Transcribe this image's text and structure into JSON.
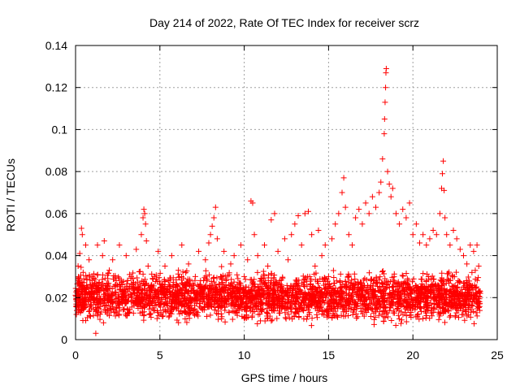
{
  "chart_data": {
    "type": "scatter",
    "title": "Day 214 of 2022, Rate Of TEC Index for receiver scrz",
    "xlabel": "GPS time / hours",
    "ylabel": "ROTI / TECUs",
    "xlim": [
      0,
      25
    ],
    "ylim": [
      0,
      0.14
    ],
    "xticks": [
      0,
      5,
      10,
      15,
      20,
      25
    ],
    "xtick_labels": [
      "0",
      "5",
      "10",
      "15",
      "20",
      "25"
    ],
    "yticks": [
      0,
      0.02,
      0.04,
      0.06,
      0.08,
      0.1,
      0.12,
      0.14
    ],
    "ytick_labels": [
      "0",
      "0.02",
      "0.04",
      "0.06",
      "0.08",
      "0.1",
      "0.12",
      "0.14"
    ],
    "grid": true,
    "marker": "+",
    "series": [
      {
        "name": "ROTI",
        "color": "#ff0000",
        "points": [
          [
            0.05,
            0.012
          ],
          [
            0.1,
            0.022
          ],
          [
            0.15,
            0.035
          ],
          [
            0.2,
            0.028
          ],
          [
            0.25,
            0.041
          ],
          [
            0.3,
            0.018
          ],
          [
            0.35,
            0.053
          ],
          [
            0.4,
            0.05
          ],
          [
            0.45,
            0.032
          ],
          [
            0.5,
            0.015
          ],
          [
            0.6,
            0.045
          ],
          [
            0.7,
            0.025
          ],
          [
            0.8,
            0.038
          ],
          [
            0.9,
            0.016
          ],
          [
            1.0,
            0.03
          ],
          [
            1.1,
            0.02
          ],
          [
            1.2,
            0.003
          ],
          [
            1.3,
            0.045
          ],
          [
            1.4,
            0.027
          ],
          [
            1.5,
            0.019
          ],
          [
            1.6,
            0.04
          ],
          [
            1.7,
            0.047
          ],
          [
            1.8,
            0.022
          ],
          [
            1.9,
            0.014
          ],
          [
            2.0,
            0.033
          ],
          [
            2.2,
            0.038
          ],
          [
            2.4,
            0.026
          ],
          [
            2.6,
            0.045
          ],
          [
            2.8,
            0.02
          ],
          [
            3.0,
            0.04
          ],
          [
            3.2,
            0.031
          ],
          [
            3.4,
            0.024
          ],
          [
            3.6,
            0.043
          ],
          [
            3.8,
            0.018
          ],
          [
            3.9,
            0.05
          ],
          [
            4.0,
            0.058
          ],
          [
            4.05,
            0.062
          ],
          [
            4.1,
            0.06
          ],
          [
            4.15,
            0.055
          ],
          [
            4.2,
            0.047
          ],
          [
            4.3,
            0.035
          ],
          [
            4.5,
            0.025
          ],
          [
            4.7,
            0.03
          ],
          [
            4.9,
            0.042
          ],
          [
            5.1,
            0.02
          ],
          [
            5.3,
            0.035
          ],
          [
            5.5,
            0.028
          ],
          [
            5.7,
            0.04
          ],
          [
            5.9,
            0.017
          ],
          [
            6.1,
            0.033
          ],
          [
            6.3,
            0.045
          ],
          [
            6.5,
            0.022
          ],
          [
            6.7,
            0.036
          ],
          [
            6.9,
            0.019
          ],
          [
            7.1,
            0.03
          ],
          [
            7.3,
            0.042
          ],
          [
            7.5,
            0.025
          ],
          [
            7.7,
            0.038
          ],
          [
            7.9,
            0.046
          ],
          [
            8.0,
            0.05
          ],
          [
            8.1,
            0.054
          ],
          [
            8.2,
            0.058
          ],
          [
            8.3,
            0.063
          ],
          [
            8.4,
            0.048
          ],
          [
            8.6,
            0.03
          ],
          [
            8.8,
            0.042
          ],
          [
            9.0,
            0.022
          ],
          [
            9.2,
            0.036
          ],
          [
            9.4,
            0.04
          ],
          [
            9.6,
            0.02
          ],
          [
            9.8,
            0.045
          ],
          [
            10.0,
            0.03
          ],
          [
            10.2,
            0.038
          ],
          [
            10.4,
            0.066
          ],
          [
            10.5,
            0.065
          ],
          [
            10.6,
            0.05
          ],
          [
            10.8,
            0.04
          ],
          [
            11.0,
            0.028
          ],
          [
            11.2,
            0.045
          ],
          [
            11.4,
            0.035
          ],
          [
            11.6,
            0.057
          ],
          [
            11.8,
            0.06
          ],
          [
            12.0,
            0.042
          ],
          [
            12.2,
            0.026
          ],
          [
            12.4,
            0.048
          ],
          [
            12.6,
            0.038
          ],
          [
            12.8,
            0.05
          ],
          [
            13.0,
            0.055
          ],
          [
            13.2,
            0.059
          ],
          [
            13.4,
            0.045
          ],
          [
            13.6,
            0.06
          ],
          [
            13.8,
            0.061
          ],
          [
            14.0,
            0.05
          ],
          [
            14.2,
            0.035
          ],
          [
            14.4,
            0.052
          ],
          [
            14.6,
            0.04
          ],
          [
            14.8,
            0.045
          ],
          [
            15.0,
            0.03
          ],
          [
            15.2,
            0.048
          ],
          [
            15.4,
            0.055
          ],
          [
            15.6,
            0.06
          ],
          [
            15.8,
            0.07
          ],
          [
            15.9,
            0.077
          ],
          [
            16.0,
            0.063
          ],
          [
            16.2,
            0.05
          ],
          [
            16.4,
            0.045
          ],
          [
            16.6,
            0.058
          ],
          [
            16.8,
            0.062
          ],
          [
            17.0,
            0.055
          ],
          [
            17.2,
            0.065
          ],
          [
            17.4,
            0.06
          ],
          [
            17.6,
            0.068
          ],
          [
            17.8,
            0.063
          ],
          [
            18.0,
            0.07
          ],
          [
            18.1,
            0.075
          ],
          [
            18.2,
            0.086
          ],
          [
            18.3,
            0.098
          ],
          [
            18.32,
            0.105
          ],
          [
            18.35,
            0.113
          ],
          [
            18.38,
            0.12
          ],
          [
            18.4,
            0.127
          ],
          [
            18.42,
            0.129
          ],
          [
            18.5,
            0.08
          ],
          [
            18.6,
            0.074
          ],
          [
            18.7,
            0.068
          ],
          [
            18.8,
            0.072
          ],
          [
            19.0,
            0.06
          ],
          [
            19.2,
            0.055
          ],
          [
            19.4,
            0.062
          ],
          [
            19.6,
            0.058
          ],
          [
            19.8,
            0.065
          ],
          [
            20.0,
            0.05
          ],
          [
            20.2,
            0.055
          ],
          [
            20.4,
            0.046
          ],
          [
            20.6,
            0.05
          ],
          [
            20.8,
            0.045
          ],
          [
            21.0,
            0.048
          ],
          [
            21.2,
            0.052
          ],
          [
            21.4,
            0.05
          ],
          [
            21.6,
            0.06
          ],
          [
            21.7,
            0.072
          ],
          [
            21.75,
            0.079
          ],
          [
            21.8,
            0.085
          ],
          [
            21.85,
            0.071
          ],
          [
            21.9,
            0.058
          ],
          [
            22.0,
            0.05
          ],
          [
            22.2,
            0.045
          ],
          [
            22.4,
            0.052
          ],
          [
            22.6,
            0.048
          ],
          [
            22.8,
            0.043
          ],
          [
            23.0,
            0.04
          ],
          [
            23.2,
            0.036
          ],
          [
            23.4,
            0.045
          ],
          [
            23.6,
            0.042
          ],
          [
            23.8,
            0.045
          ],
          [
            23.9,
            0.035
          ]
        ]
      }
    ],
    "band": {
      "description": "dense cluster of ROTI values along the whole day",
      "typical_range": [
        0.006,
        0.035
      ]
    }
  }
}
